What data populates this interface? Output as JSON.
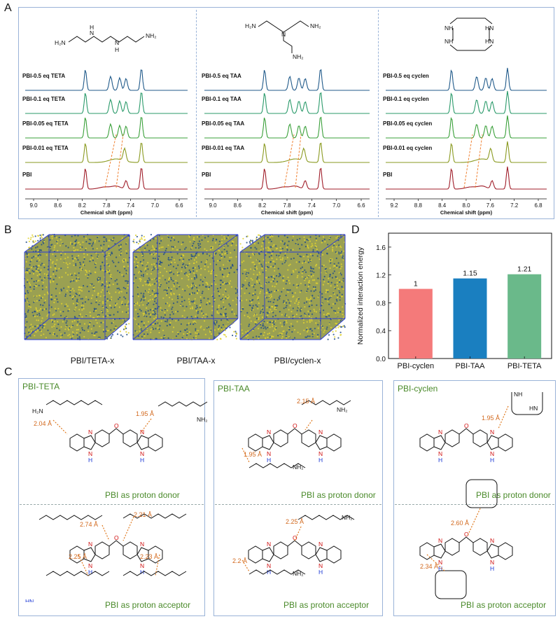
{
  "panels": {
    "a": "A",
    "b": "B",
    "c": "C",
    "d": "D"
  },
  "nmr": {
    "axis_title": "Chemical shift (ppm)",
    "spectra_colors": [
      "#205a8a",
      "#2a9a6a",
      "#3aa03a",
      "#8a9a20",
      "#a01e2a"
    ],
    "left": {
      "labels": [
        "PBI-0.5 eq TETA",
        "PBI-0.1 eq TETA",
        "PBI-0.05 eq TETA",
        "PBI-0.01 eq TETA",
        "PBI"
      ],
      "ticks": [
        "9.0",
        "8.8",
        "8.6",
        "8.4",
        "8.2",
        "8.0",
        "7.8",
        "7.6",
        "7.4",
        "7.2",
        "7.0",
        "6.8",
        "6.6"
      ]
    },
    "middle": {
      "labels": [
        "PBI-0.5 eq TAA",
        "PBI-0.1 eq TAA",
        "PBI-0.05 eq TAA",
        "PBI-0.01 eq TAA",
        "PBI"
      ],
      "ticks": [
        "9.0",
        "8.8",
        "8.6",
        "8.4",
        "8.2",
        "8.0",
        "7.8",
        "7.6",
        "7.4",
        "7.2",
        "7.0",
        "6.8",
        "6.6"
      ]
    },
    "right": {
      "labels": [
        "PBI-0.5 eq cyclen",
        "PBI-0.1 eq cyclen",
        "PBI-0.05 eq cyclen",
        "PBI-0.01 eq cyclen",
        "PBI"
      ],
      "ticks": [
        "9.2",
        "9.0",
        "8.8",
        "8.6",
        "8.4",
        "8.2",
        "8.0",
        "7.8",
        "7.6",
        "7.4",
        "7.2",
        "7.0",
        "6.8"
      ]
    },
    "mol_atoms": {
      "h2n": "H₂N",
      "nh2": "NH₂",
      "h": "H",
      "n": "N",
      "nh": "NH",
      "hn": "HN"
    }
  },
  "cubes": {
    "labels": [
      "PBI/TETA-x",
      "PBI/TAA-x",
      "PBI/cyclen-x"
    ]
  },
  "chart_data": {
    "type": "bar",
    "categories": [
      "PBI-cyclen",
      "PBI-TAA",
      "PBI-TETA"
    ],
    "values": [
      1,
      1.15,
      1.21
    ],
    "value_labels": [
      "1",
      "1.15",
      "1.21"
    ],
    "colors": [
      "#f47a7a",
      "#1a7fc0",
      "#6ab98a"
    ],
    "ylabel": "Normalized interaction energy",
    "ylim": [
      0,
      1.8
    ],
    "yticks": [
      "0.0",
      "0.4",
      "0.8",
      "1.2",
      "1.6"
    ]
  },
  "panelC": {
    "titles": [
      "PBI-TETA",
      "PBI-TAA",
      "PBI-cyclen"
    ],
    "donor_note": "PBI as proton donor",
    "acceptor_note": "PBI as proton acceptor",
    "distances": {
      "teta_d": [
        "2.04 Å",
        "1.95 Å"
      ],
      "teta_a": [
        "2.74 Å",
        "2.21 Å",
        "2.25 Å",
        "2.23 Å"
      ],
      "taa_d": [
        "2.15 Å",
        "1.95 Å"
      ],
      "taa_a": [
        "2.25 Å",
        "2.2 Å"
      ],
      "cyc_d": [
        "1.95 Å"
      ],
      "cyc_a": [
        "2.60 Å",
        "2.34 Å"
      ]
    }
  }
}
